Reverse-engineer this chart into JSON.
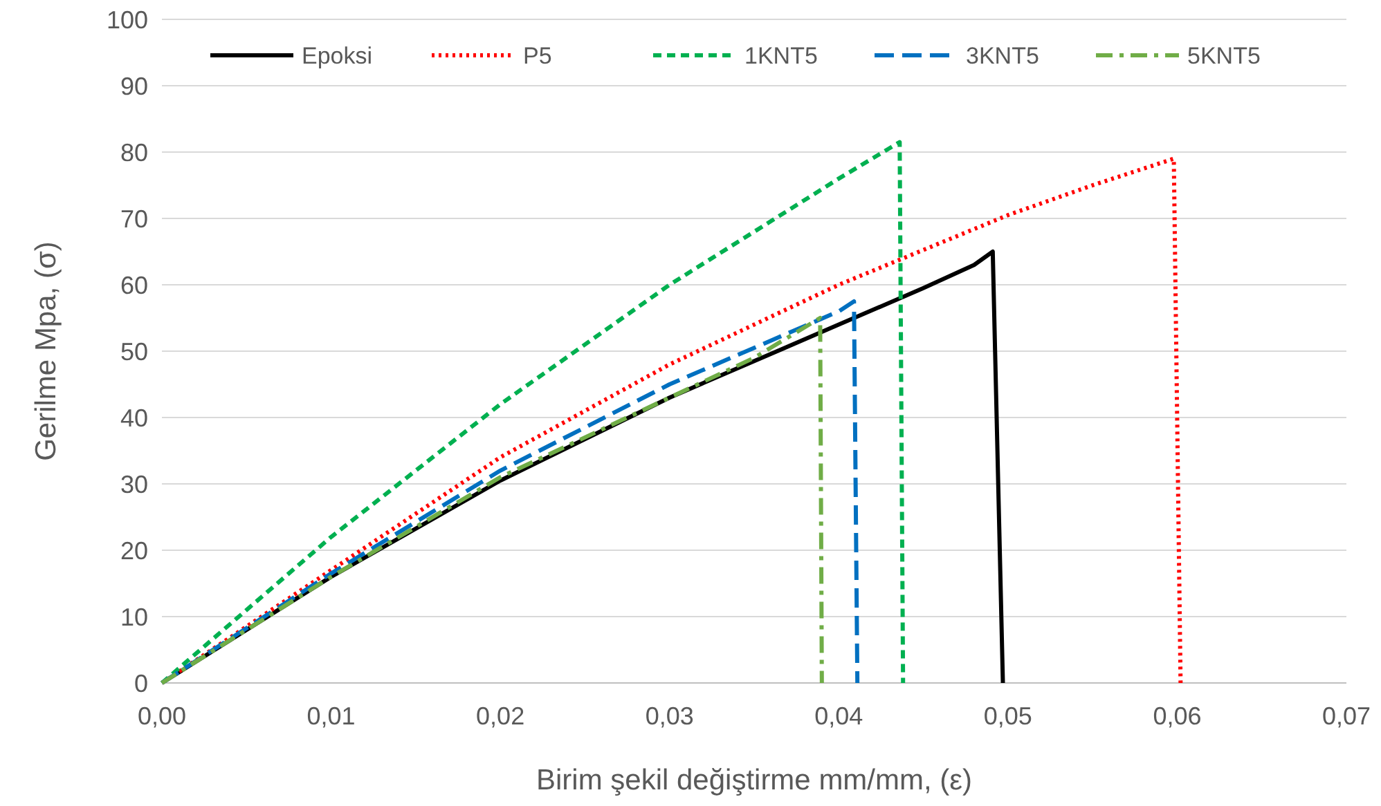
{
  "chart_data": {
    "type": "line",
    "xlabel": "Birim şekil değiştirme mm/mm, (ε)",
    "ylabel": "Gerilme Mpa, (σ)",
    "xlim": [
      0,
      0.07
    ],
    "xticks": [
      {
        "value": 0,
        "label": "0,00"
      },
      {
        "value": 0.01,
        "label": "0,01"
      },
      {
        "value": 0.02,
        "label": "0,02"
      },
      {
        "value": 0.03,
        "label": "0,03"
      },
      {
        "value": 0.04,
        "label": "0,04"
      },
      {
        "value": 0.05,
        "label": "0,05"
      },
      {
        "value": 0.06,
        "label": "0,06"
      },
      {
        "value": 0.07,
        "label": "0,07"
      }
    ],
    "ylim": [
      0,
      100
    ],
    "yticks": [
      0,
      10,
      20,
      30,
      40,
      50,
      60,
      70,
      80,
      90,
      100
    ],
    "grid": "y",
    "legend": "top",
    "marker": "none",
    "series": [
      {
        "name": "Epoksi",
        "color": "#000000",
        "line_style": "solid",
        "x": [
          0,
          0.01,
          0.02,
          0.03,
          0.04,
          0.045,
          0.048,
          0.0491,
          0.0497
        ],
        "values": [
          0,
          16,
          30.5,
          43,
          54,
          59.5,
          63,
          65,
          0
        ]
      },
      {
        "name": "P5",
        "color": "#ff0000",
        "line_style": "dotted",
        "x": [
          0,
          0.01,
          0.02,
          0.03,
          0.04,
          0.05,
          0.055,
          0.0598,
          0.0602
        ],
        "values": [
          0,
          17,
          34,
          48,
          60,
          70.5,
          75,
          79,
          0
        ]
      },
      {
        "name": "1KNT5",
        "color": "#00b050",
        "line_style": "dashed",
        "x": [
          0,
          0.01,
          0.02,
          0.03,
          0.04,
          0.0436,
          0.0438
        ],
        "values": [
          0,
          22,
          42,
          60,
          76,
          81.5,
          0
        ]
      },
      {
        "name": "3KNT5",
        "color": "#0070c0",
        "line_style": "longdash",
        "x": [
          0,
          0.01,
          0.02,
          0.03,
          0.035,
          0.04,
          0.0409,
          0.0411
        ],
        "values": [
          0,
          16.5,
          32,
          45,
          50.5,
          56,
          57.5,
          0
        ]
      },
      {
        "name": "5KNT5",
        "color": "#70ad47",
        "line_style": "dashdot",
        "x": [
          0,
          0.01,
          0.02,
          0.03,
          0.035,
          0.0389,
          0.039
        ],
        "values": [
          0,
          16,
          31,
          43,
          49,
          55,
          0
        ]
      }
    ]
  }
}
